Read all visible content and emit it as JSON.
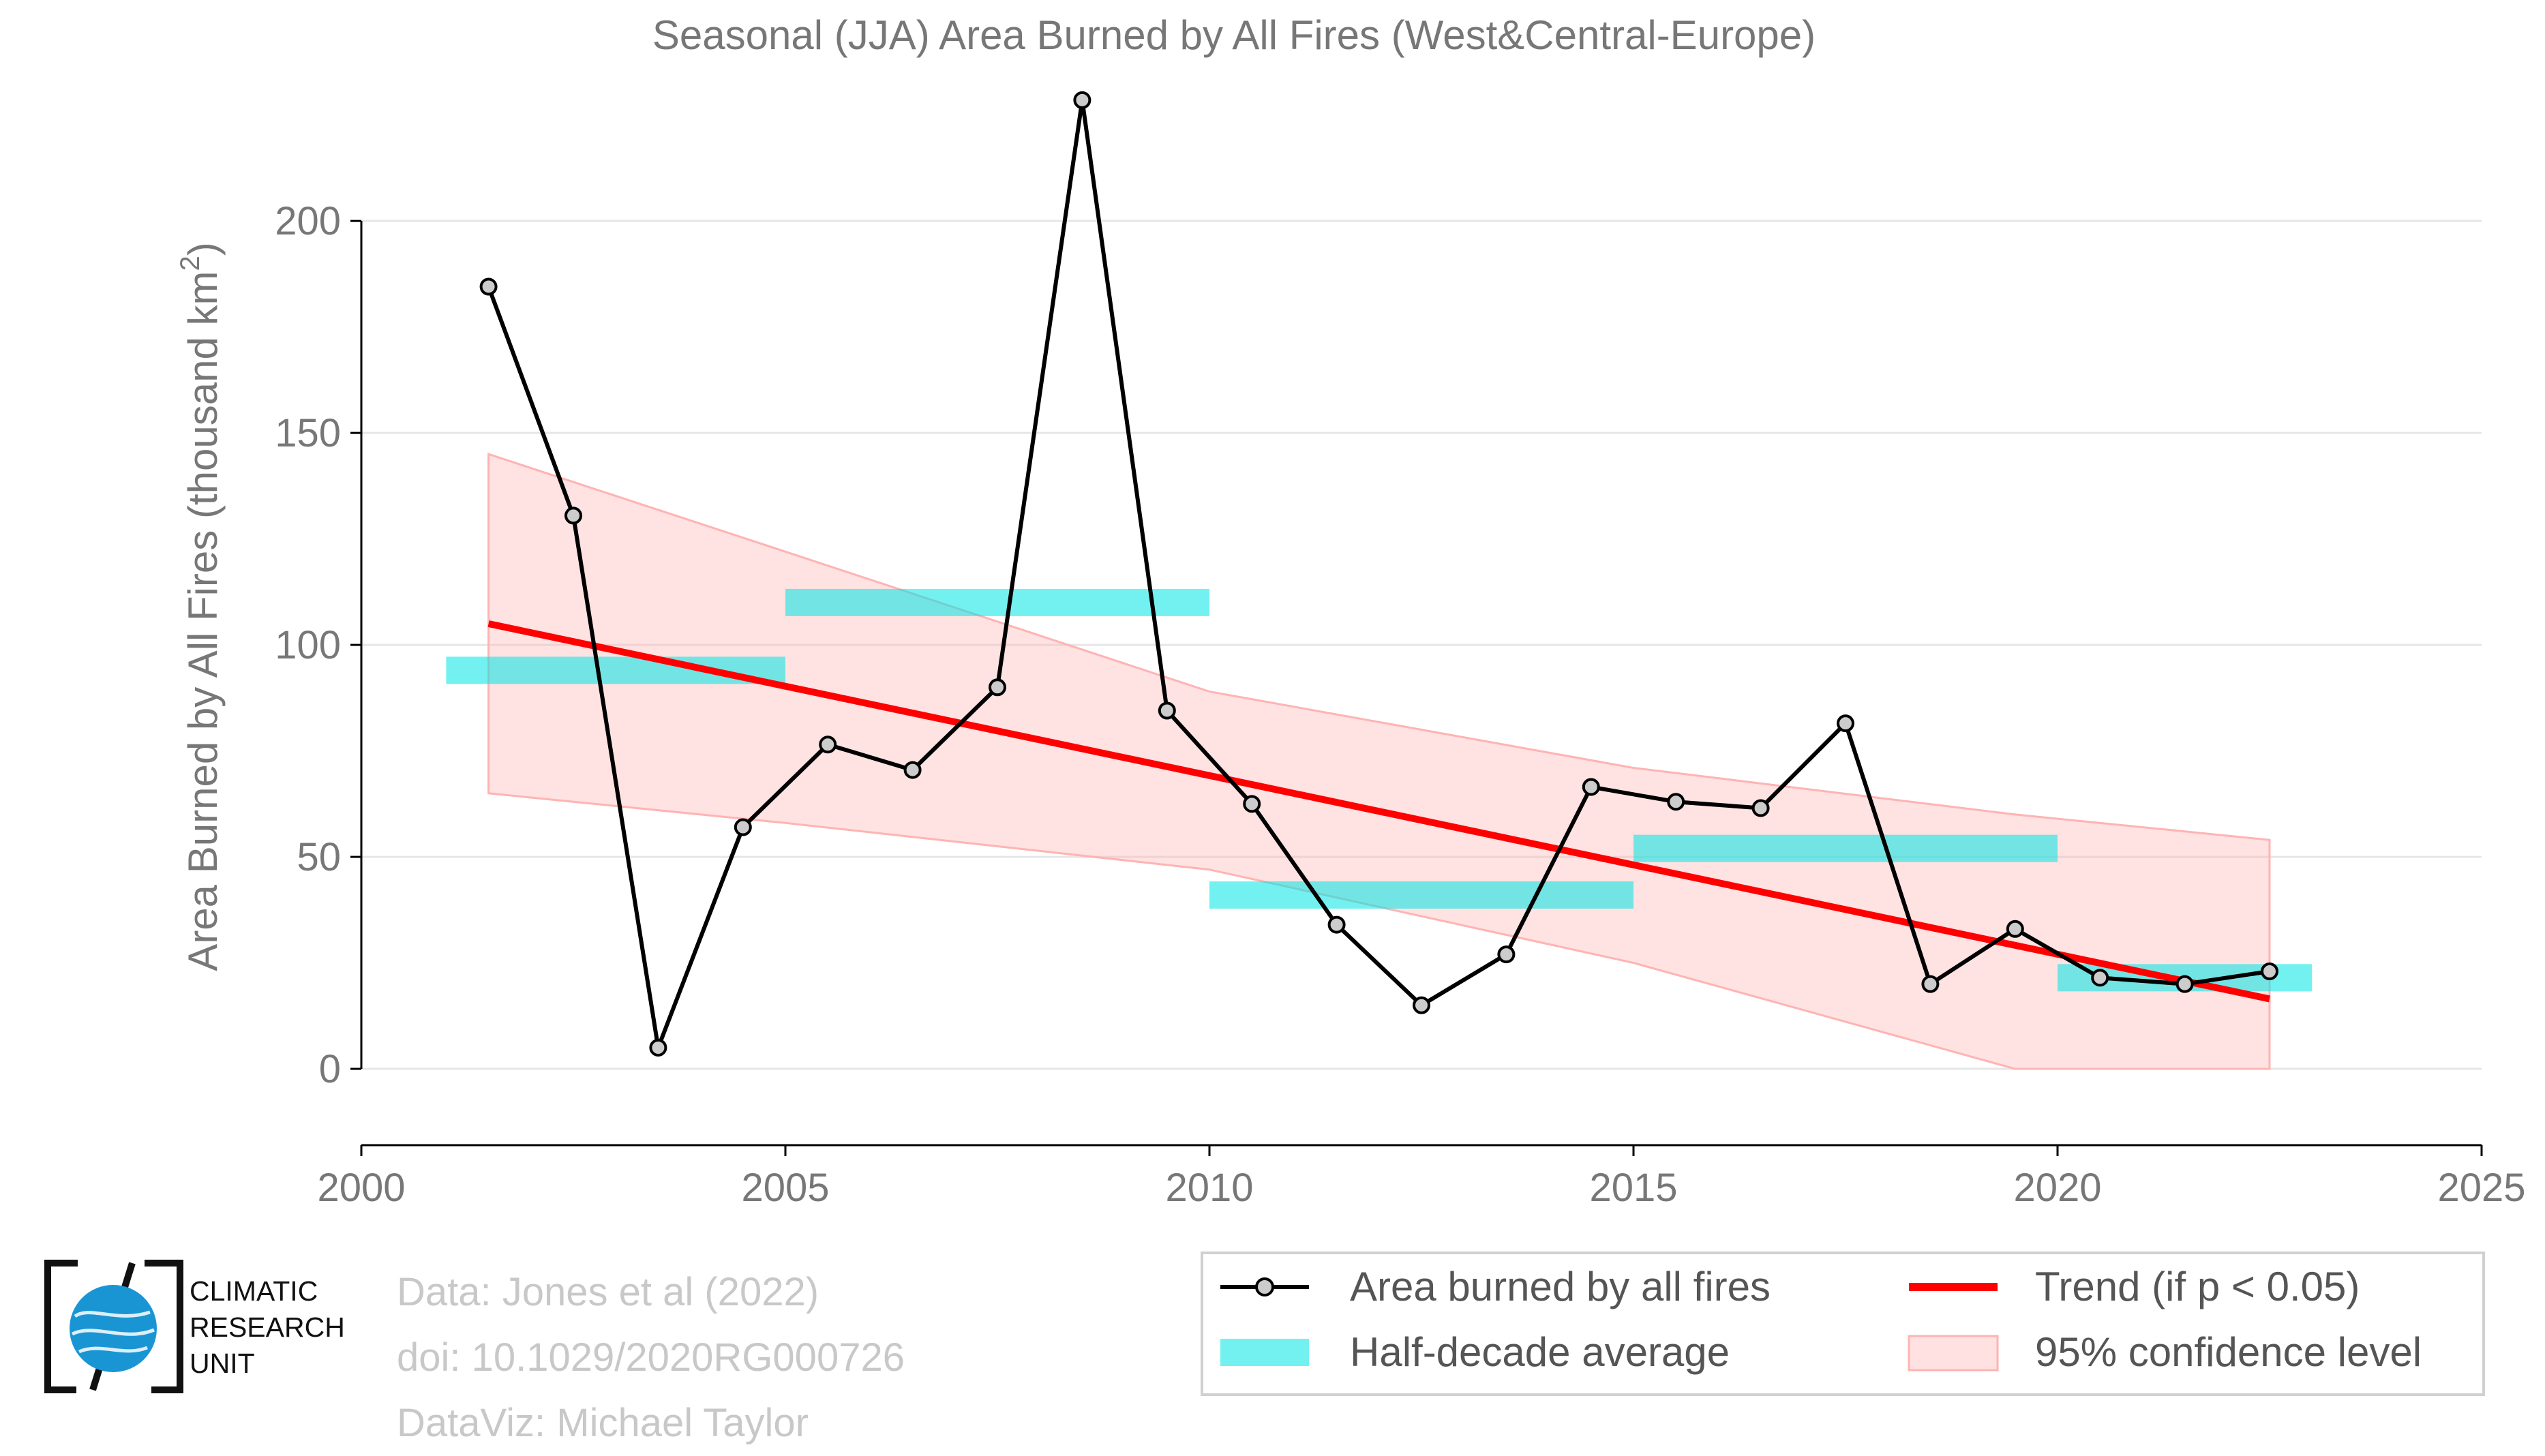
{
  "chart_data": {
    "type": "line",
    "title": "Seasonal (JJA) Area Burned by All Fires (West&Central-Europe)",
    "ylabel_main": "Area Burned by All Fires (thousand km",
    "ylabel_sup": "2",
    "ylabel_close": ")",
    "xlim": [
      2000,
      2025
    ],
    "ylim": [
      -18,
      228
    ],
    "x_ticks": [
      2000,
      2005,
      2010,
      2015,
      2020,
      2025
    ],
    "y_ticks": [
      0,
      50,
      100,
      150,
      200
    ],
    "grid": true,
    "legend_placement": "bottom-right",
    "series": [
      {
        "name": "Area burned by all fires",
        "color": "#000000",
        "x": [
          2001.5,
          2002.5,
          2003.5,
          2004.5,
          2005.5,
          2006.5,
          2007.5,
          2008.5,
          2009.5,
          2010.5,
          2011.5,
          2012.5,
          2013.5,
          2014.5,
          2015.5,
          2016.5,
          2017.5,
          2018.5,
          2019.5,
          2020.5,
          2021.5,
          2022.5
        ],
        "y": [
          184.5,
          130.5,
          5,
          57,
          76.5,
          70.5,
          90,
          228.5,
          84.5,
          62.5,
          34,
          15,
          27,
          66.5,
          63,
          61.5,
          81.5,
          20,
          33,
          21.5,
          20,
          23
        ]
      }
    ],
    "half_decade_average": {
      "name": "Half-decade average",
      "color": "#00e5e5",
      "segments": [
        {
          "x0": 2001,
          "x1": 2005,
          "y": 94
        },
        {
          "x0": 2005,
          "x1": 2010,
          "y": 110
        },
        {
          "x0": 2010,
          "x1": 2015,
          "y": 41
        },
        {
          "x0": 2015,
          "x1": 2020,
          "y": 52
        },
        {
          "x0": 2020,
          "x1": 2023,
          "y": 21.5
        }
      ]
    },
    "trend": {
      "name": "Trend (if p < 0.05)",
      "color": "#ff0000",
      "x": [
        2001.5,
        2022.5
      ],
      "y": [
        105,
        16.5
      ]
    },
    "confidence": {
      "name": "95% confidence level",
      "color": "#ffb3b3",
      "x": [
        2001.5,
        2005,
        2010,
        2015,
        2019.5,
        2022.5
      ],
      "upper": [
        145,
        122,
        89,
        71,
        60,
        54
      ],
      "lower": [
        65,
        58,
        47,
        25,
        0,
        0
      ]
    }
  },
  "credits": {
    "line1": "Data: Jones et al (2022)",
    "line2": "doi: 10.1029/2020RG000726",
    "line3": "DataViz: Michael Taylor"
  },
  "logo": {
    "line1": "CLIMATIC",
    "line2": "RESEARCH",
    "line3": "UNIT"
  },
  "colors": {
    "axis_text": "#777777",
    "grid": "#e6e6e6",
    "logo_blue": "#1a95d4"
  }
}
